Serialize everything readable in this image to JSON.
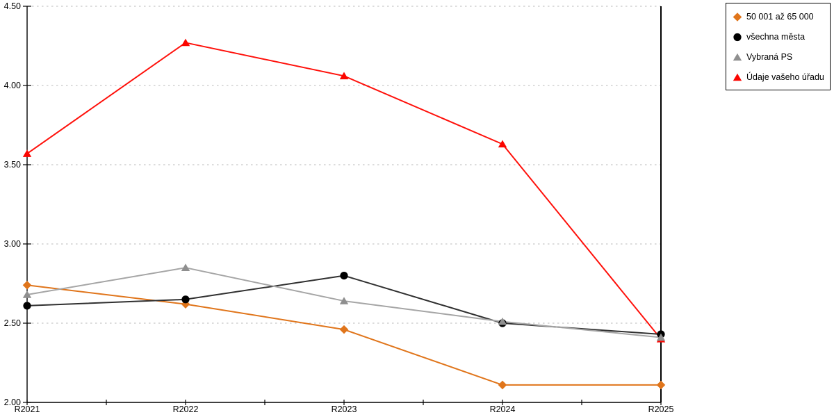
{
  "chart_data": {
    "type": "line",
    "title": "",
    "xlabel": "",
    "ylabel": "",
    "categories": [
      "R2021",
      "R2022",
      "R2023",
      "R2024",
      "R2025"
    ],
    "series": [
      {
        "name": "50 001 až 65 000",
        "marker": "diamond",
        "line_color": "#e0751b",
        "marker_color": "#e0751b",
        "values": [
          2.74,
          2.62,
          2.46,
          2.11,
          2.11
        ]
      },
      {
        "name": "všechna města",
        "marker": "circle",
        "line_color": "#303030",
        "marker_color": "#000000",
        "values": [
          2.61,
          2.65,
          2.8,
          2.5,
          2.43
        ]
      },
      {
        "name": "Vybraná PS",
        "marker": "triangle",
        "line_color": "#a5a5a5",
        "marker_color": "#8f8f8f",
        "values": [
          2.68,
          2.85,
          2.64,
          2.51,
          2.41
        ]
      },
      {
        "name": "Údaje vašeho úřadu",
        "marker": "triangle",
        "line_color": "#ff100a",
        "marker_color": "#fb0500",
        "values": [
          3.57,
          4.27,
          4.06,
          3.63,
          2.4
        ]
      }
    ],
    "ylim": [
      2.0,
      4.5
    ],
    "ytick_step": 0.5,
    "y_tick_labels": [
      "2.00",
      "2.50",
      "3.00",
      "3.50",
      "4.00",
      "4.50"
    ],
    "x_tick_labels": [
      "R2021",
      "R2022",
      "R2023",
      "R2024",
      "R2025"
    ],
    "grid": "horizontal-dotted",
    "legend_position": "top-right",
    "colors": {
      "grid": "#c6c6c6",
      "axis": "#000000",
      "background": "#ffffff",
      "text": "#000000"
    }
  }
}
